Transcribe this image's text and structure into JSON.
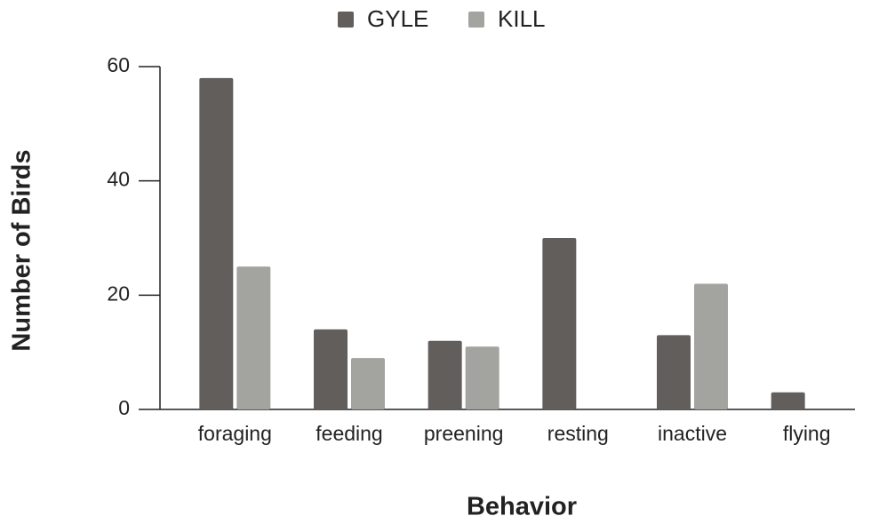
{
  "chart_data": {
    "type": "bar",
    "xlabel": "Behavior",
    "ylabel": "Number of Birds",
    "categories": [
      "foraging",
      "feeding",
      "preening",
      "resting",
      "inactive",
      "flying"
    ],
    "series": [
      {
        "name": "GYLE",
        "color": "#625e5c",
        "values": [
          58,
          14,
          12,
          30,
          13,
          3
        ]
      },
      {
        "name": "KILL",
        "color": "#a3a49f",
        "values": [
          25,
          9,
          11,
          0,
          22,
          0
        ]
      }
    ],
    "ylim": [
      0,
      60
    ],
    "yticks": [
      0,
      20,
      40,
      60
    ],
    "legend": "top",
    "grid": false
  }
}
